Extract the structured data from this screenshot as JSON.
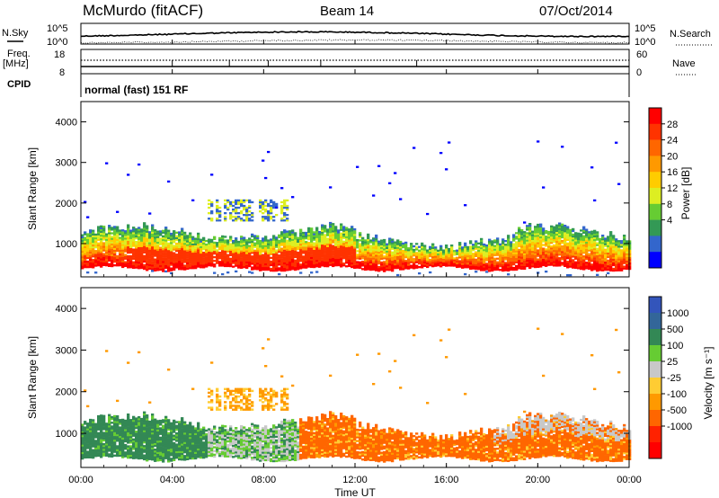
{
  "header": {
    "station": "McMurdo (fitACF)",
    "beam": "Beam 14",
    "date": "07/Oct/2014",
    "mode": "normal (fast) 151 RF"
  },
  "left_labels": {
    "nsky": "N.Sky",
    "freq": "Freq.",
    "freq_unit": "[MHz]",
    "cpid": "CPID"
  },
  "right_labels": {
    "nsearch": "N.Search",
    "nave": "Nave"
  },
  "small_ticks": {
    "noise_top_left": "10^5",
    "noise_bottom_left": "10^0",
    "noise_top_right": "10^5",
    "noise_bottom_right": "10^0",
    "freq_top": "18",
    "freq_bottom": "8",
    "nave_top": "60",
    "nave_bottom": "0"
  },
  "colorbar_power": {
    "label": "Power [dB]",
    "ticks": [
      "28",
      "24",
      "20",
      "16",
      "12",
      "8",
      "4"
    ],
    "colors": [
      "#ff0000",
      "#ff3300",
      "#ff6600",
      "#ff9900",
      "#ffcc00",
      "#ddee22",
      "#66cc33",
      "#339955",
      "#3366cc",
      "#0000ff"
    ]
  },
  "colorbar_velocity": {
    "label": "Velocity [m s⁻¹]",
    "ticks": [
      "1000",
      "500",
      "100",
      "25",
      "-25",
      "-100",
      "-500",
      "-1000"
    ],
    "colors": [
      "#3355bb",
      "#336699",
      "#338855",
      "#66cc33",
      "#c8c8c8",
      "#ffcc33",
      "#ff9900",
      "#ff6600",
      "#ff2200",
      "#ff0000"
    ]
  },
  "chart_data": [
    {
      "type": "heatmap",
      "title": "Power",
      "ylabel": "Slant Range [km]",
      "xlabel": "",
      "ylim": [
        180,
        4500
      ],
      "yticks": [
        1000,
        2000,
        3000,
        4000
      ],
      "xlim": [
        0,
        24
      ],
      "series": [
        {
          "name": "Power [dB]",
          "description": "band of high power near 400-1400 km, weaker scatter up to 2000 km"
        }
      ]
    },
    {
      "type": "heatmap",
      "title": "Velocity",
      "ylabel": "Slant Range [km]",
      "xlabel": "Time UT",
      "ylim": [
        180,
        4500
      ],
      "yticks": [
        1000,
        2000,
        3000,
        4000
      ],
      "xlim": [
        0,
        24
      ],
      "xticks": [
        "00:00",
        "04:00",
        "08:00",
        "12:00",
        "16:00",
        "20:00",
        "00:00"
      ]
    }
  ]
}
